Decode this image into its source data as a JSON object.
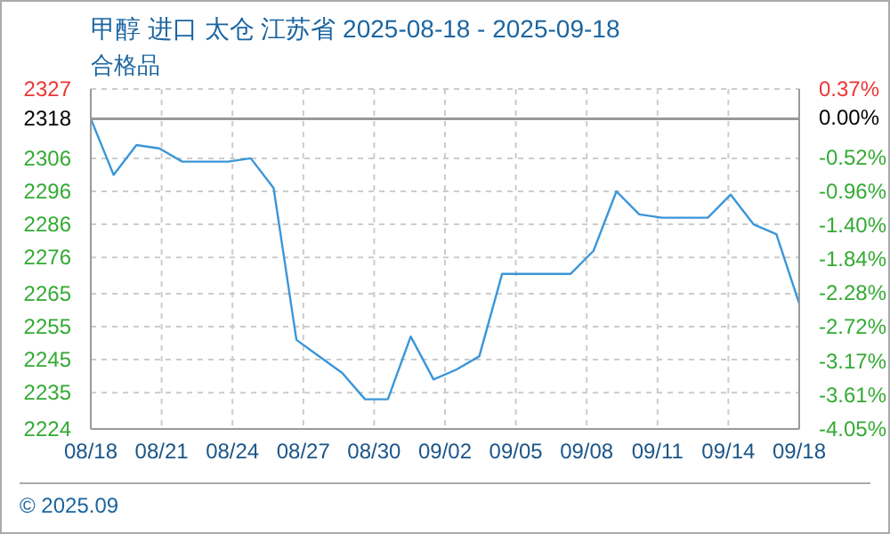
{
  "chart_data": {
    "type": "line",
    "title": "甲醇 进口 太仓 江苏省 2025-08-18 - 2025-09-18",
    "subtitle": "合格品",
    "annotations": [
      "© 2025.09"
    ],
    "x": [
      "2025-08-18",
      "2025-08-19",
      "2025-08-20",
      "2025-08-21",
      "2025-08-22",
      "2025-08-23",
      "2025-08-24",
      "2025-08-25",
      "2025-08-26",
      "2025-08-27",
      "2025-08-28",
      "2025-08-29",
      "2025-08-30",
      "2025-08-31",
      "2025-09-01",
      "2025-09-02",
      "2025-09-03",
      "2025-09-04",
      "2025-09-05",
      "2025-09-06",
      "2025-09-07",
      "2025-09-08",
      "2025-09-09",
      "2025-09-10",
      "2025-09-11",
      "2025-09-12",
      "2025-09-13",
      "2025-09-14",
      "2025-09-15",
      "2025-09-16",
      "2025-09-17",
      "2025-09-18"
    ],
    "series": [
      {
        "color": "#3a96d8",
        "values": [
          2318,
          2301,
          2310,
          2309,
          2305,
          2305,
          2305,
          2306,
          2297,
          2251,
          2246,
          2241,
          2233,
          2233,
          2252,
          2239,
          2242,
          2246,
          2271,
          2271,
          2271,
          2271,
          2278,
          2296,
          2289,
          2288,
          2288,
          2288,
          2295,
          2286,
          2283,
          2262
        ]
      }
    ],
    "xlim": [
      "2025-08-18",
      "2025-09-18"
    ],
    "xticks": [
      {
        "value": "2025-08-18",
        "label": "08/18"
      },
      {
        "value": "2025-08-21T02:24",
        "label": "08/21"
      },
      {
        "value": "2025-08-24T04:48",
        "label": "08/24"
      },
      {
        "value": "2025-08-27T07:12",
        "label": "08/27"
      },
      {
        "value": "2025-08-30T09:36",
        "label": "08/30"
      },
      {
        "value": "2025-09-02T12:00",
        "label": "09/02"
      },
      {
        "value": "2025-09-05T14:24",
        "label": "09/05"
      },
      {
        "value": "2025-09-08T16:48",
        "label": "09/08"
      },
      {
        "value": "2025-09-11T19:12",
        "label": "09/11"
      },
      {
        "value": "2025-09-14T21:36",
        "label": "09/14"
      },
      {
        "value": "2025-09-18",
        "label": "09/18"
      }
    ],
    "ylim": [
      2224,
      2327
    ],
    "yticks": [
      2224,
      2235,
      2245,
      2255,
      2265,
      2276,
      2286,
      2296,
      2306,
      2318,
      2327
    ],
    "y2lim": [
      -4.05,
      0.37
    ],
    "y2ticks": [
      {
        "value": -4.05,
        "label": "-4.05%"
      },
      {
        "value": -3.61,
        "label": "-3.61%"
      },
      {
        "value": -3.17,
        "label": "-3.17%"
      },
      {
        "value": -2.72,
        "label": "-2.72%"
      },
      {
        "value": -2.28,
        "label": "-2.28%"
      },
      {
        "value": -1.84,
        "label": "-1.84%"
      },
      {
        "value": -1.4,
        "label": "-1.40%"
      },
      {
        "value": -0.96,
        "label": "-0.96%"
      },
      {
        "value": -0.52,
        "label": "-0.52%"
      },
      {
        "value": 0,
        "label": "0.00%"
      },
      {
        "value": 0.37,
        "label": "0.37%"
      }
    ],
    "ref_lines": [
      {
        "axis": "y",
        "value": 2318,
        "color": "#999999"
      }
    ],
    "grid": true,
    "marker": "none",
    "line_style": "solid"
  }
}
